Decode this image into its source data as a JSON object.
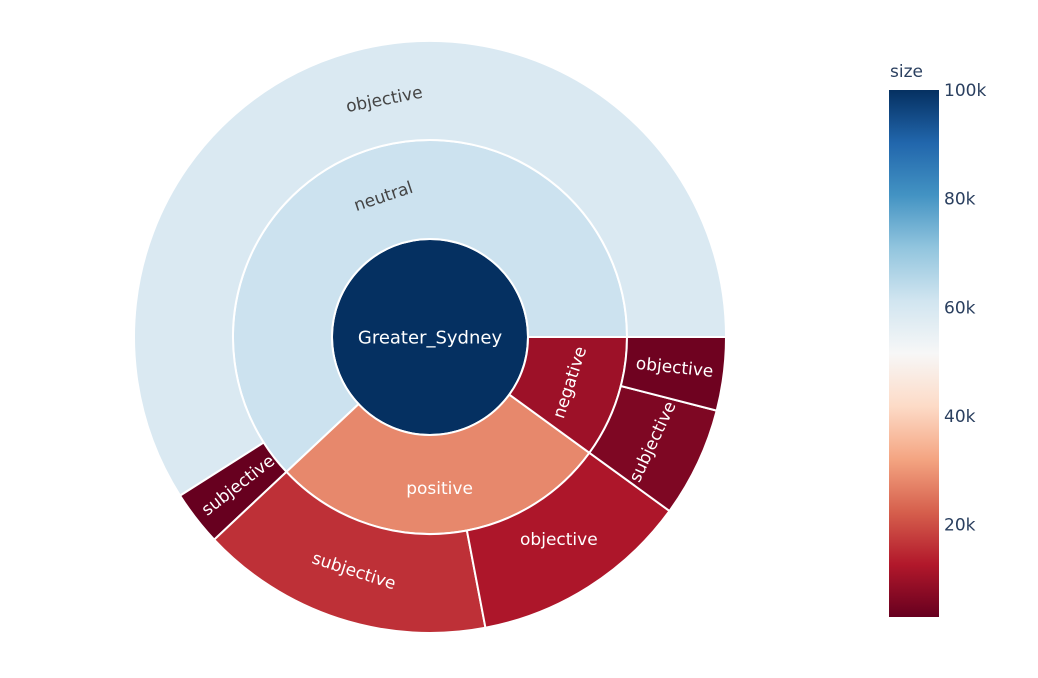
{
  "chart_data": {
    "type": "sunburst",
    "root": {
      "label": "Greater_Sydney",
      "value": 100000
    },
    "children": [
      {
        "label": "neutral",
        "value": 62000,
        "children": [
          {
            "label": "objective",
            "value": 59000
          },
          {
            "label": "subjective",
            "value": 3000
          }
        ]
      },
      {
        "label": "positive",
        "value": 28000,
        "children": [
          {
            "label": "subjective",
            "value": 16000
          },
          {
            "label": "objective",
            "value": 12000
          }
        ]
      },
      {
        "label": "negative",
        "value": 10000,
        "children": [
          {
            "label": "subjective",
            "value": 6000
          },
          {
            "label": "objective",
            "value": 4000
          }
        ]
      }
    ],
    "colorbar": {
      "title": "size",
      "range": [
        3000,
        100000
      ],
      "ticks": [
        {
          "value": 20000,
          "label": "20k"
        },
        {
          "value": 40000,
          "label": "40k"
        },
        {
          "value": 60000,
          "label": "60k"
        },
        {
          "value": 80000,
          "label": "80k"
        },
        {
          "value": 100000,
          "label": "100k"
        }
      ],
      "colorscale": "RdBu"
    }
  }
}
